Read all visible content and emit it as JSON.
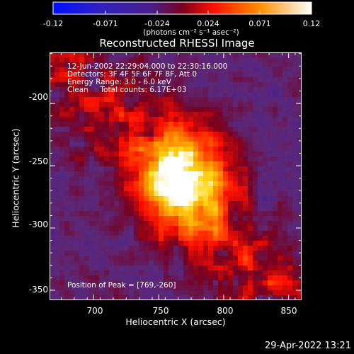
{
  "colorbar": {
    "ticks": [
      "-0.12",
      "-0.071",
      "-0.024",
      "0.024",
      "0.071",
      "0.12"
    ],
    "units": "(photons cm⁻² s⁻¹ asec⁻²)",
    "range": [
      -0.12,
      0.12
    ]
  },
  "chart_data": {
    "type": "heatmap",
    "title": "Reconstructed RHESSI Image",
    "xlabel": "Heliocentric X (arcsec)",
    "ylabel": "Heliocentric Y (arcsec)",
    "xlim": [
      666,
      860
    ],
    "ylim": [
      -358,
      -159
    ],
    "xticks": [
      "700",
      "750",
      "800",
      "850"
    ],
    "yticks": [
      "-200",
      "-250",
      "-300",
      "-350"
    ],
    "annotations": [
      "12-Jun-2002 22:29:04.000 to 22:30:16.000",
      "Detectors: 3F 4F 5F 6F 7F 8F, Att 0",
      "Energy Range: 3.0 - 6.0 keV",
      "Clean     Total counts: 6.17E+03"
    ],
    "peak_label": "Position of Peak = [769,-260]",
    "peak": [
      769,
      -260
    ],
    "colors": [
      "#0000ff",
      "#4020a0",
      "#5a2d8a",
      "#7a2a3a",
      "#c01010",
      "#ff3000",
      "#ff8000",
      "#ffd000",
      "#ffffff"
    ]
  },
  "timestamp": "29-Apr-2022 13:21"
}
